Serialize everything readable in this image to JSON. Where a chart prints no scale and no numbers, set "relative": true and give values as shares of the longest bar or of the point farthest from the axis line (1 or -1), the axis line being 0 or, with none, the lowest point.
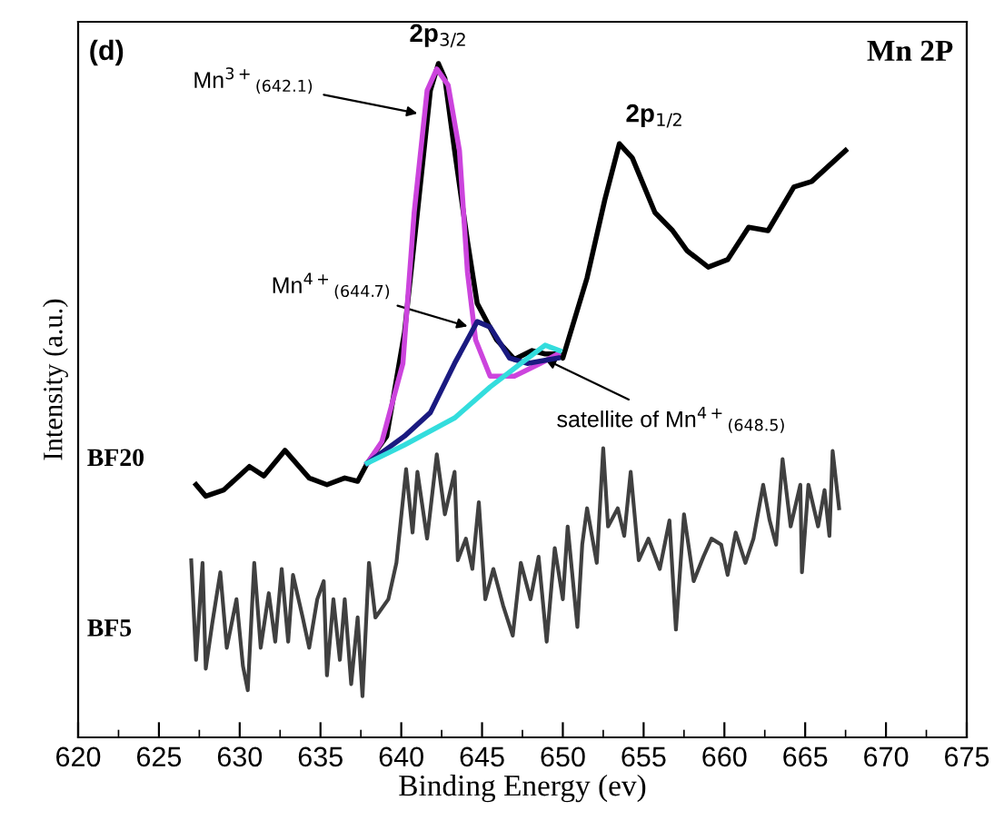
{
  "chart_data": {
    "type": "line",
    "relative": true,
    "xlabel": "Binding Energy (ev)",
    "ylabel": "Intensity (a.u.)",
    "xlim": [
      620,
      675
    ],
    "xticks": [
      620,
      625,
      630,
      635,
      640,
      645,
      650,
      655,
      660,
      665,
      670,
      675
    ],
    "tick_labels": "x",
    "grid": false,
    "marker": "none",
    "line_style": "solid",
    "series": [
      {
        "name": "BF20",
        "color": "#000000",
        "x": [
          627.3,
          627.9,
          629.0,
          630.6,
          631.5,
          632.8,
          634.3,
          635.4,
          636.5,
          637.3,
          637.9,
          639.1,
          640.2,
          641.0,
          641.8,
          642.3,
          642.7,
          643.3,
          644.1,
          644.7,
          645.9,
          647.0,
          648.1,
          648.9,
          649.8,
          650.0,
          651.5,
          652.6,
          653.5,
          654.3,
          655.7,
          656.8,
          657.7,
          659.0,
          660.2,
          661.5,
          662.7,
          664.3,
          665.4,
          667.5
        ],
        "values": [
          0.375,
          0.358,
          0.367,
          0.402,
          0.388,
          0.426,
          0.385,
          0.375,
          0.385,
          0.38,
          0.407,
          0.447,
          0.601,
          0.779,
          0.96,
          1.0,
          0.978,
          0.871,
          0.736,
          0.644,
          0.59,
          0.561,
          0.574,
          0.569,
          0.569,
          0.563,
          0.682,
          0.798,
          0.881,
          0.86,
          0.779,
          0.752,
          0.722,
          0.698,
          0.709,
          0.757,
          0.752,
          0.817,
          0.825,
          0.871
        ]
      },
      {
        "color": "#cc44dd",
        "x": [
          637.9,
          638.8,
          640.1,
          640.8,
          641.6,
          642.2,
          642.9,
          643.6,
          644.1,
          644.6,
          645.5,
          647.0,
          648.6,
          649.7
        ],
        "values": [
          0.407,
          0.439,
          0.555,
          0.779,
          0.96,
          0.992,
          0.968,
          0.871,
          0.69,
          0.59,
          0.536,
          0.536,
          0.555,
          0.569
        ]
      },
      {
        "color": "#1a1a80",
        "x": [
          637.9,
          640.2,
          641.8,
          643.3,
          644.7,
          645.5,
          646.7,
          647.8,
          649.7
        ],
        "values": [
          0.407,
          0.447,
          0.482,
          0.555,
          0.617,
          0.609,
          0.563,
          0.555,
          0.563
        ]
      },
      {
        "color": "#33dddd",
        "x": [
          637.9,
          640.2,
          643.3,
          645.5,
          647.4,
          648.9,
          649.8
        ],
        "values": [
          0.407,
          0.434,
          0.474,
          0.52,
          0.555,
          0.582,
          0.574
        ]
      },
      {
        "name": "BF5",
        "color": "#404040",
        "x": [
          627.0,
          627.3,
          627.7,
          627.9,
          628.3,
          628.8,
          629.2,
          629.8,
          630.2,
          630.5,
          630.9,
          631.3,
          631.8,
          632.2,
          632.6,
          633.0,
          633.3,
          633.9,
          634.3,
          634.8,
          635.2,
          635.4,
          635.8,
          636.2,
          636.5,
          636.9,
          637.3,
          637.6,
          638.0,
          638.4,
          639.2,
          639.7,
          640.3,
          640.7,
          641.0,
          641.6,
          642.2,
          642.7,
          643.3,
          643.5,
          644.0,
          644.4,
          644.8,
          645.2,
          645.7,
          646.3,
          646.9,
          647.4,
          648.0,
          648.5,
          649.0,
          649.5,
          650.0,
          650.3,
          650.9,
          651.2,
          651.5,
          652.1,
          652.5,
          652.8,
          653.4,
          653.8,
          654.2,
          654.7,
          655.3,
          656.0,
          656.6,
          657.0,
          657.5,
          658.1,
          658.7,
          659.2,
          659.8,
          660.2,
          660.7,
          661.3,
          661.8,
          662.4,
          662.8,
          663.2,
          663.6,
          664.1,
          664.7,
          664.8,
          665.2,
          665.8,
          666.2,
          666.5,
          666.7,
          667.1
        ],
        "values": [
          0.263,
          0.115,
          0.259,
          0.102,
          0.169,
          0.245,
          0.133,
          0.205,
          0.106,
          0.07,
          0.259,
          0.133,
          0.214,
          0.142,
          0.25,
          0.142,
          0.241,
          0.178,
          0.133,
          0.205,
          0.232,
          0.092,
          0.205,
          0.115,
          0.205,
          0.079,
          0.178,
          0.061,
          0.259,
          0.178,
          0.205,
          0.259,
          0.398,
          0.304,
          0.394,
          0.295,
          0.42,
          0.331,
          0.394,
          0.263,
          0.295,
          0.25,
          0.349,
          0.205,
          0.25,
          0.196,
          0.151,
          0.259,
          0.205,
          0.268,
          0.142,
          0.281,
          0.205,
          0.313,
          0.164,
          0.286,
          0.34,
          0.259,
          0.429,
          0.313,
          0.34,
          0.299,
          0.394,
          0.263,
          0.295,
          0.25,
          0.322,
          0.16,
          0.331,
          0.232,
          0.268,
          0.295,
          0.286,
          0.241,
          0.304,
          0.259,
          0.295,
          0.375,
          0.322,
          0.286,
          0.413,
          0.313,
          0.375,
          0.245,
          0.375,
          0.313,
          0.367,
          0.299,
          0.425,
          0.34
        ]
      }
    ],
    "annotations": [
      "(d)",
      "Mn 2P",
      {
        "text": "2p$_{3/2}$",
        "x": 642.3,
        "y": 1.0
      },
      {
        "text": "2p$_{1/2}$",
        "x": 653.5,
        "y": 0.881
      },
      {
        "text": "Mn$^{3+}$$_{(642.1)}$",
        "x": 641.0,
        "y": 0.926
      },
      {
        "text": "Mn$^{4+}$$_{(644.7)}$",
        "x": 644.1,
        "y": 0.61
      },
      {
        "text": "satellite of Mn$^{4+}$$_{(648.5)}$",
        "x": 648.9,
        "y": 0.561
      }
    ]
  }
}
